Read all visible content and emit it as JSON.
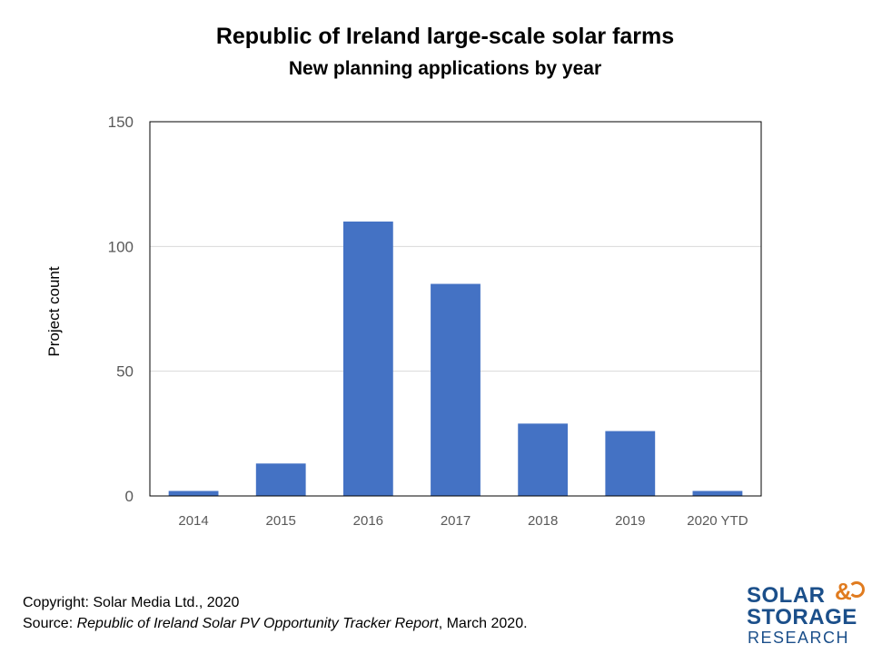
{
  "chart_data": {
    "type": "bar",
    "title": "Republic of Ireland large-scale solar farms",
    "subtitle": "New planning applications by year",
    "categories": [
      "2014",
      "2015",
      "2016",
      "2017",
      "2018",
      "2019",
      "2020 YTD"
    ],
    "values": [
      2,
      13,
      110,
      85,
      29,
      26,
      2
    ],
    "xlabel": "",
    "ylabel": "Project count",
    "ylim": [
      0,
      150
    ],
    "yticks": [
      0,
      50,
      100,
      150
    ],
    "ytick_labels": [
      "0",
      "50",
      "100",
      "150"
    ],
    "grid": true,
    "legend": "none",
    "bar_color": "#4472c4"
  },
  "footer": {
    "copyright": "Copyright: Solar Media Ltd., 2020",
    "source_prefix": "Source: ",
    "source_title": "Republic of Ireland Solar PV Opportunity Tracker Report",
    "source_suffix": ", March 2020."
  },
  "logo": {
    "line1": "SOLAR",
    "amp": "&",
    "line2": "STORAGE",
    "line3": "RESEARCH",
    "primary_color": "#1b4f8a",
    "accent_color": "#e07b1f"
  }
}
